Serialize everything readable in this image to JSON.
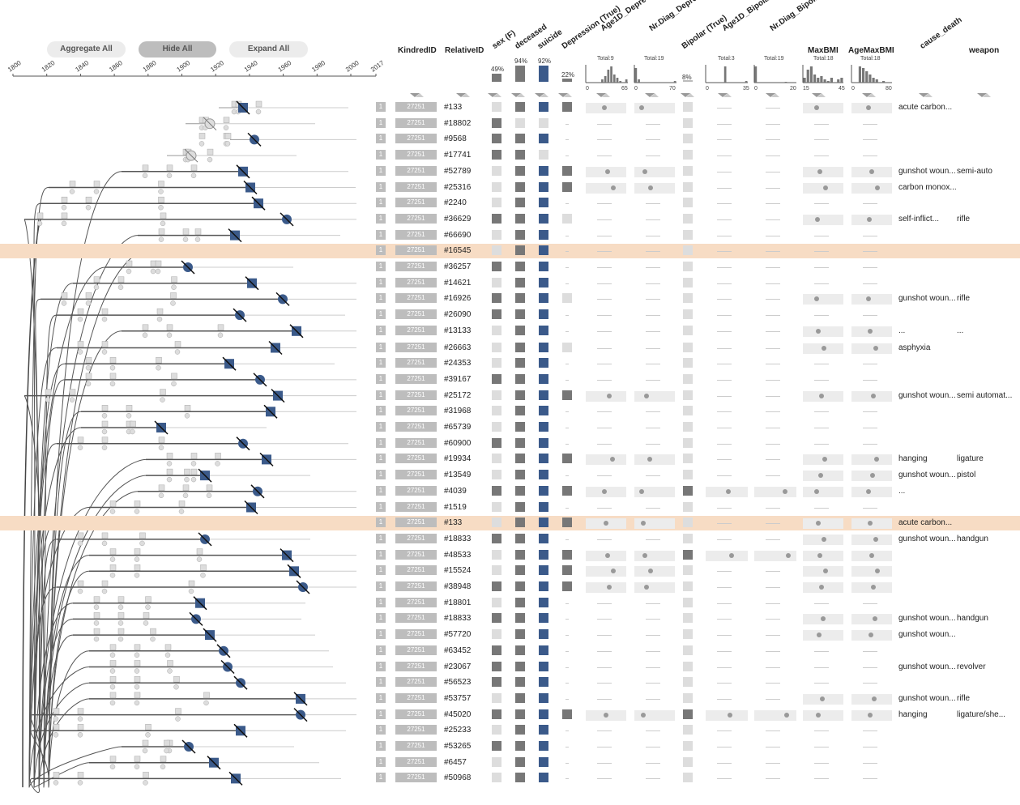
{
  "buttons": {
    "aggregate": "Aggregate All",
    "hide": "Hide All",
    "expand": "Expand All"
  },
  "axis_years": [
    "1800",
    "1820",
    "1840",
    "1860",
    "1880",
    "1900",
    "1920",
    "1940",
    "1960",
    "1980",
    "2000",
    "2017"
  ],
  "columns": {
    "kindred": "KindredID",
    "relative": "RelativeID",
    "sex": "sex (F)",
    "deceased": "deceased",
    "suicide": "suicide",
    "depression": "Depression (True)",
    "age1d_dep": "Age1D_Depression",
    "nrdiag_dep": "Nr.Diag_Depression",
    "bipolar": "Bipolar (True)",
    "age1d_bip": "Age1D_Bipolar",
    "nrdiag_bip": "Nr.Diag_Bipolar",
    "maxbmi": "MaxBMI",
    "agemaxbmi": "AgeMaxBMI",
    "cause": "cause_death",
    "weapon": "weapon"
  },
  "summary": {
    "sex_pct": "49%",
    "deceased_pct": "94%",
    "suicide_pct": "92%",
    "depression_pct": "22%",
    "bipolar_pct": "8%",
    "age1d_dep_total": "Total:9",
    "nrdiag_dep_total": "Total:19",
    "age1d_bip_total": "Total:3",
    "nrdiag_bip_total": "Total:19",
    "maxbmi_total": "Total:18",
    "agemaxbmi_total": "Total:18",
    "age1d_dep_range": [
      "0",
      "65"
    ],
    "nrdiag_dep_range": [
      "0",
      "70"
    ],
    "age1d_bip_range": [
      "0",
      "35"
    ],
    "nrdiag_bip_range": [
      "0",
      "20"
    ],
    "maxbmi_range": [
      "15",
      "45"
    ],
    "agemaxbmi_range": [
      "0",
      "80"
    ]
  },
  "colors": {
    "suicide": "#3b5a8a",
    "highlight": "#f7dcc4",
    "dark": "#777777",
    "light": "#dddddd",
    "idgrey": "#bdbdbd"
  },
  "rows": [
    {
      "rel": "#133",
      "sex": "l",
      "dec": "d",
      "sui": true,
      "dep": "d",
      "hl": false,
      "dd": true,
      "bmi": true,
      "cause": "acute carbon...",
      "weapon": ""
    },
    {
      "rel": "#18802",
      "sex": "d",
      "dec": "l",
      "sui": false,
      "dep": "",
      "hl": false,
      "dd": false,
      "bmi": false,
      "cause": "",
      "weapon": ""
    },
    {
      "rel": "#9568",
      "sex": "d",
      "dec": "d",
      "sui": true,
      "dep": "",
      "hl": false,
      "dd": false,
      "bmi": false,
      "cause": "",
      "weapon": ""
    },
    {
      "rel": "#17741",
      "sex": "d",
      "dec": "d",
      "sui": false,
      "dep": "",
      "hl": false,
      "dd": false,
      "bmi": false,
      "cause": "",
      "weapon": ""
    },
    {
      "rel": "#52789",
      "sex": "l",
      "dec": "d",
      "sui": true,
      "dep": "d",
      "hl": false,
      "dd": true,
      "bmi": true,
      "cause": "gunshot woun...",
      "weapon": "semi-auto"
    },
    {
      "rel": "#25316",
      "sex": "l",
      "dec": "d",
      "sui": true,
      "dep": "d",
      "hl": false,
      "dd": true,
      "bmi": true,
      "cause": "carbon monox...",
      "weapon": ""
    },
    {
      "rel": "#2240",
      "sex": "l",
      "dec": "d",
      "sui": true,
      "dep": "",
      "hl": false,
      "dd": false,
      "bmi": false,
      "cause": "",
      "weapon": ""
    },
    {
      "rel": "#36629",
      "sex": "d",
      "dec": "d",
      "sui": true,
      "dep": "l",
      "hl": false,
      "dd": false,
      "bmi": true,
      "cause": "self-inflict...",
      "weapon": "rifle"
    },
    {
      "rel": "#66690",
      "sex": "l",
      "dec": "d",
      "sui": true,
      "dep": "",
      "hl": false,
      "dd": false,
      "bmi": false,
      "cause": "",
      "weapon": ""
    },
    {
      "rel": "#16545",
      "sex": "l",
      "dec": "d",
      "sui": true,
      "dep": "",
      "hl": true,
      "dd": false,
      "bmi": false,
      "cause": "",
      "weapon": ""
    },
    {
      "rel": "#36257",
      "sex": "d",
      "dec": "d",
      "sui": true,
      "dep": "",
      "hl": false,
      "dd": false,
      "bmi": false,
      "cause": "",
      "weapon": ""
    },
    {
      "rel": "#14621",
      "sex": "l",
      "dec": "d",
      "sui": true,
      "dep": "",
      "hl": false,
      "dd": false,
      "bmi": false,
      "cause": "",
      "weapon": ""
    },
    {
      "rel": "#16926",
      "sex": "d",
      "dec": "d",
      "sui": true,
      "dep": "l",
      "hl": false,
      "dd": false,
      "bmi": true,
      "cause": "gunshot woun...",
      "weapon": "rifle"
    },
    {
      "rel": "#26090",
      "sex": "d",
      "dec": "d",
      "sui": true,
      "dep": "",
      "hl": false,
      "dd": false,
      "bmi": false,
      "cause": "",
      "weapon": ""
    },
    {
      "rel": "#13133",
      "sex": "l",
      "dec": "d",
      "sui": true,
      "dep": "",
      "hl": false,
      "dd": false,
      "bmi": true,
      "cause": "...",
      "weapon": "..."
    },
    {
      "rel": "#26663",
      "sex": "l",
      "dec": "d",
      "sui": true,
      "dep": "l",
      "hl": false,
      "dd": false,
      "bmi": true,
      "cause": "asphyxia",
      "weapon": ""
    },
    {
      "rel": "#24353",
      "sex": "l",
      "dec": "d",
      "sui": true,
      "dep": "",
      "hl": false,
      "dd": false,
      "bmi": false,
      "cause": "",
      "weapon": ""
    },
    {
      "rel": "#39167",
      "sex": "d",
      "dec": "d",
      "sui": true,
      "dep": "",
      "hl": false,
      "dd": false,
      "bmi": false,
      "cause": "",
      "weapon": ""
    },
    {
      "rel": "#25172",
      "sex": "l",
      "dec": "d",
      "sui": true,
      "dep": "d",
      "hl": false,
      "dd": true,
      "bmi": true,
      "cause": "gunshot woun...",
      "weapon": "semi automat..."
    },
    {
      "rel": "#31968",
      "sex": "l",
      "dec": "d",
      "sui": true,
      "dep": "",
      "hl": false,
      "dd": false,
      "bmi": false,
      "cause": "",
      "weapon": ""
    },
    {
      "rel": "#65739",
      "sex": "l",
      "dec": "d",
      "sui": true,
      "dep": "",
      "hl": false,
      "dd": false,
      "bmi": false,
      "cause": "",
      "weapon": ""
    },
    {
      "rel": "#60900",
      "sex": "d",
      "dec": "d",
      "sui": true,
      "dep": "",
      "hl": false,
      "dd": false,
      "bmi": false,
      "cause": "",
      "weapon": ""
    },
    {
      "rel": "#19934",
      "sex": "l",
      "dec": "d",
      "sui": true,
      "dep": "d",
      "hl": false,
      "dd": true,
      "bmi": true,
      "cause": "hanging",
      "weapon": "ligature"
    },
    {
      "rel": "#13549",
      "sex": "l",
      "dec": "d",
      "sui": true,
      "dep": "",
      "hl": false,
      "dd": false,
      "bmi": true,
      "cause": "gunshot woun...",
      "weapon": "pistol"
    },
    {
      "rel": "#4039",
      "sex": "d",
      "dec": "d",
      "sui": true,
      "dep": "d",
      "hl": false,
      "dd": true,
      "bmi": true,
      "cause": "...",
      "weapon": ""
    },
    {
      "rel": "#1519",
      "sex": "l",
      "dec": "d",
      "sui": true,
      "dep": "",
      "hl": false,
      "dd": false,
      "bmi": false,
      "cause": "",
      "weapon": ""
    },
    {
      "rel": "#133",
      "sex": "l",
      "dec": "d",
      "sui": true,
      "dep": "d",
      "hl": true,
      "dd": true,
      "bmi": true,
      "cause": "acute carbon...",
      "weapon": ""
    },
    {
      "rel": "#18833",
      "sex": "d",
      "dec": "d",
      "sui": true,
      "dep": "",
      "hl": false,
      "dd": false,
      "bmi": true,
      "cause": "gunshot woun...",
      "weapon": "handgun"
    },
    {
      "rel": "#48533",
      "sex": "l",
      "dec": "d",
      "sui": true,
      "dep": "d",
      "hl": false,
      "dd": true,
      "bmi": true,
      "cause": "",
      "weapon": ""
    },
    {
      "rel": "#15524",
      "sex": "l",
      "dec": "d",
      "sui": true,
      "dep": "d",
      "hl": false,
      "dd": true,
      "bmi": true,
      "cause": "",
      "weapon": ""
    },
    {
      "rel": "#38948",
      "sex": "d",
      "dec": "d",
      "sui": true,
      "dep": "d",
      "hl": false,
      "dd": true,
      "bmi": true,
      "cause": "",
      "weapon": ""
    },
    {
      "rel": "#18801",
      "sex": "l",
      "dec": "d",
      "sui": true,
      "dep": "",
      "hl": false,
      "dd": false,
      "bmi": false,
      "cause": "",
      "weapon": ""
    },
    {
      "rel": "#18833",
      "sex": "d",
      "dec": "d",
      "sui": true,
      "dep": "",
      "hl": false,
      "dd": false,
      "bmi": true,
      "cause": "gunshot woun...",
      "weapon": "handgun"
    },
    {
      "rel": "#57720",
      "sex": "l",
      "dec": "d",
      "sui": true,
      "dep": "",
      "hl": false,
      "dd": false,
      "bmi": true,
      "cause": "gunshot woun...",
      "weapon": ""
    },
    {
      "rel": "#63452",
      "sex": "d",
      "dec": "d",
      "sui": true,
      "dep": "",
      "hl": false,
      "dd": false,
      "bmi": false,
      "cause": "",
      "weapon": ""
    },
    {
      "rel": "#23067",
      "sex": "d",
      "dec": "d",
      "sui": true,
      "dep": "",
      "hl": false,
      "dd": false,
      "bmi": false,
      "cause": "gunshot woun...",
      "weapon": "revolver"
    },
    {
      "rel": "#56523",
      "sex": "d",
      "dec": "d",
      "sui": true,
      "dep": "",
      "hl": false,
      "dd": false,
      "bmi": false,
      "cause": "",
      "weapon": ""
    },
    {
      "rel": "#53757",
      "sex": "l",
      "dec": "d",
      "sui": true,
      "dep": "",
      "hl": false,
      "dd": false,
      "bmi": true,
      "cause": "gunshot woun...",
      "weapon": "rifle"
    },
    {
      "rel": "#45020",
      "sex": "d",
      "dec": "d",
      "sui": true,
      "dep": "d",
      "hl": false,
      "dd": true,
      "bmi": true,
      "cause": "hanging",
      "weapon": "ligature/she..."
    },
    {
      "rel": "#25233",
      "sex": "l",
      "dec": "d",
      "sui": true,
      "dep": "",
      "hl": false,
      "dd": false,
      "bmi": false,
      "cause": "",
      "weapon": ""
    },
    {
      "rel": "#53265",
      "sex": "d",
      "dec": "d",
      "sui": true,
      "dep": "",
      "hl": false,
      "dd": false,
      "bmi": false,
      "cause": "",
      "weapon": ""
    },
    {
      "rel": "#6457",
      "sex": "l",
      "dec": "d",
      "sui": true,
      "dep": "",
      "hl": false,
      "dd": false,
      "bmi": false,
      "cause": "",
      "weapon": ""
    },
    {
      "rel": "#50968",
      "sex": "l",
      "dec": "d",
      "sui": true,
      "dep": "",
      "hl": false,
      "dd": false,
      "bmi": false,
      "cause": "",
      "weapon": ""
    }
  ],
  "kindred_id": "27251",
  "generation": "1"
}
